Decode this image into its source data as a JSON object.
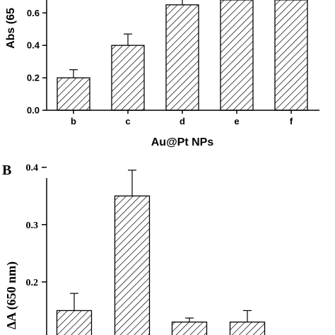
{
  "chart_data": [
    {
      "type": "bar",
      "panel_label": "",
      "categories": [
        "b",
        "c",
        "d",
        "e",
        "f"
      ],
      "values": [
        0.2,
        0.4,
        0.65,
        0.68,
        0.68
      ],
      "errors": [
        0.05,
        0.07,
        0.05,
        0.0,
        0.0
      ],
      "title": "",
      "xlabel": "Au@Pt NPs",
      "ylabel": "Abs (65",
      "ylim": [
        0,
        0.7
      ],
      "yticks": [
        "0.0",
        "0.2",
        "0.4",
        "0.6"
      ],
      "grid": false,
      "fill": "diagonal-hatch"
    },
    {
      "type": "bar",
      "panel_label": "B",
      "categories": [
        "",
        "",
        "",
        ""
      ],
      "values": [
        0.15,
        0.35,
        0.13,
        0.13
      ],
      "errors": [
        0.03,
        0.045,
        0.007,
        0.02
      ],
      "title": "",
      "xlabel": "",
      "ylabel": "ΔA (650 nm)",
      "ylim": [
        0.1,
        0.4
      ],
      "yticks": [
        "0.4",
        "0.3",
        "0.2"
      ],
      "grid": false,
      "fill": "diagonal-hatch"
    }
  ],
  "colors": {
    "ink": "#000000",
    "background": "#ffffff"
  }
}
